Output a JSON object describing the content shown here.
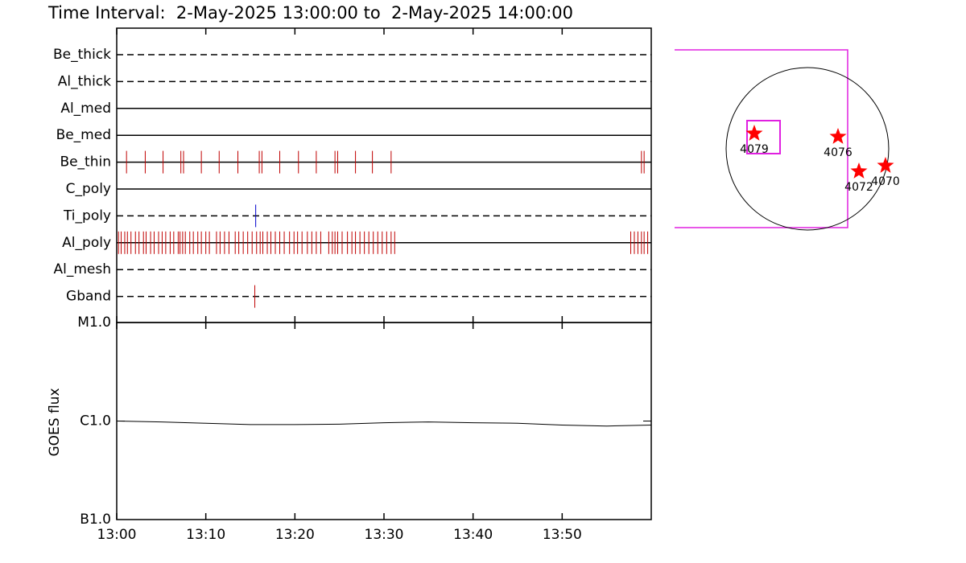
{
  "title": "Time Interval:  2-May-2025 13:00:00 to  2-May-2025 14:00:00",
  "chart_data": [
    {
      "type": "timeline",
      "xlim": [
        0,
        60
      ],
      "rows": [
        {
          "name": "Be_thick",
          "style": "dashed",
          "color": "#c00000",
          "events": []
        },
        {
          "name": "Al_thick",
          "style": "dashed",
          "color": "#c00000",
          "events": []
        },
        {
          "name": "Al_med",
          "style": "solid",
          "color": "#c00000",
          "events": []
        },
        {
          "name": "Be_med",
          "style": "solid",
          "color": "#c00000",
          "events": []
        },
        {
          "name": "Be_thin",
          "style": "solid",
          "color": "#c00000",
          "events": [
            1.1,
            3.2,
            5.2,
            7.2,
            7.5,
            9.5,
            11.5,
            13.6,
            16.0,
            16.3,
            18.3,
            20.4,
            22.4,
            24.5,
            24.8,
            26.8,
            28.7,
            30.8,
            58.9,
            59.2
          ]
        },
        {
          "name": "C_poly",
          "style": "solid",
          "color": "#c00000",
          "events": []
        },
        {
          "name": "Ti_poly",
          "style": "dashed",
          "color": "#0000cc",
          "events": [
            15.6
          ]
        },
        {
          "name": "Al_poly",
          "style": "solid",
          "color": "#c00000",
          "events": [
            0.2,
            0.5,
            0.9,
            1.2,
            1.6,
            2.1,
            2.5,
            3.0,
            3.3,
            3.8,
            4.2,
            4.7,
            5.1,
            5.5,
            6.0,
            6.4,
            6.9,
            7.1,
            7.4,
            7.7,
            8.2,
            8.6,
            9.1,
            9.5,
            10.0,
            10.4,
            11.2,
            11.6,
            12.1,
            12.6,
            13.3,
            13.7,
            14.2,
            14.7,
            15.2,
            15.7,
            16.1,
            16.4,
            16.9,
            17.3,
            17.8,
            18.3,
            18.8,
            19.4,
            19.9,
            20.3,
            20.8,
            21.4,
            21.9,
            22.4,
            22.9,
            23.8,
            24.2,
            24.5,
            24.8,
            25.3,
            25.9,
            26.4,
            26.8,
            27.3,
            27.8,
            28.3,
            28.8,
            29.3,
            29.8,
            30.3,
            30.8,
            31.2,
            57.7,
            58.1,
            58.5,
            58.9,
            59.2,
            59.6
          ]
        },
        {
          "name": "Al_mesh",
          "style": "dashed",
          "color": "#c00000",
          "events": []
        },
        {
          "name": "Gband",
          "style": "dashed",
          "color": "#c00000",
          "events": [
            15.5
          ]
        }
      ]
    },
    {
      "type": "line",
      "ylabel": "GOES flux",
      "log_scale": true,
      "color": "#000000",
      "x": [
        0,
        5,
        10,
        15,
        20,
        25,
        30,
        35,
        40,
        45,
        50,
        55,
        60
      ],
      "values": [
        1e-06,
        9.8e-07,
        9.5e-07,
        9.2e-07,
        9.2e-07,
        9.3e-07,
        9.6e-07,
        9.8e-07,
        9.6e-07,
        9.5e-07,
        9.1e-07,
        8.9e-07,
        9.1e-07
      ],
      "xlim": [
        0,
        60
      ],
      "xticks": [
        {
          "value": 0,
          "label": "13:00"
        },
        {
          "value": 10,
          "label": "13:10"
        },
        {
          "value": 20,
          "label": "13:20"
        },
        {
          "value": 30,
          "label": "13:30"
        },
        {
          "value": 40,
          "label": "13:40"
        },
        {
          "value": 50,
          "label": "13:50"
        }
      ],
      "ylim": [
        1e-07,
        1e-05
      ],
      "yticks": [
        {
          "value": 1e-05,
          "label": "M1.0"
        },
        {
          "value": 1e-06,
          "label": "C1.0"
        },
        {
          "value": 1e-07,
          "label": "B1.0"
        }
      ]
    },
    {
      "type": "map",
      "regions": [
        "4079",
        "4076",
        "4072",
        "4070"
      ],
      "color": "#ff0000"
    }
  ]
}
